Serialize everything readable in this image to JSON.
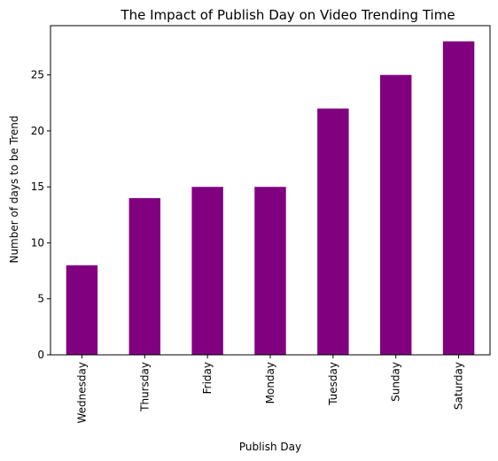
{
  "chart_data": {
    "type": "bar",
    "title": "The Impact of Publish Day on Video Trending Time",
    "xlabel": "Publish Day",
    "ylabel": "Number of days to be Trend",
    "categories": [
      "Wednesday",
      "Thursday",
      "Friday",
      "Monday",
      "Tuesday",
      "Sunday",
      "Saturday"
    ],
    "values": [
      8,
      14,
      15,
      15,
      22,
      25,
      28
    ],
    "ylim": [
      0,
      29.4
    ],
    "yticks": [
      0,
      5,
      10,
      15,
      20,
      25
    ],
    "bar_color": "#800080",
    "grid": false,
    "legend": "none"
  }
}
